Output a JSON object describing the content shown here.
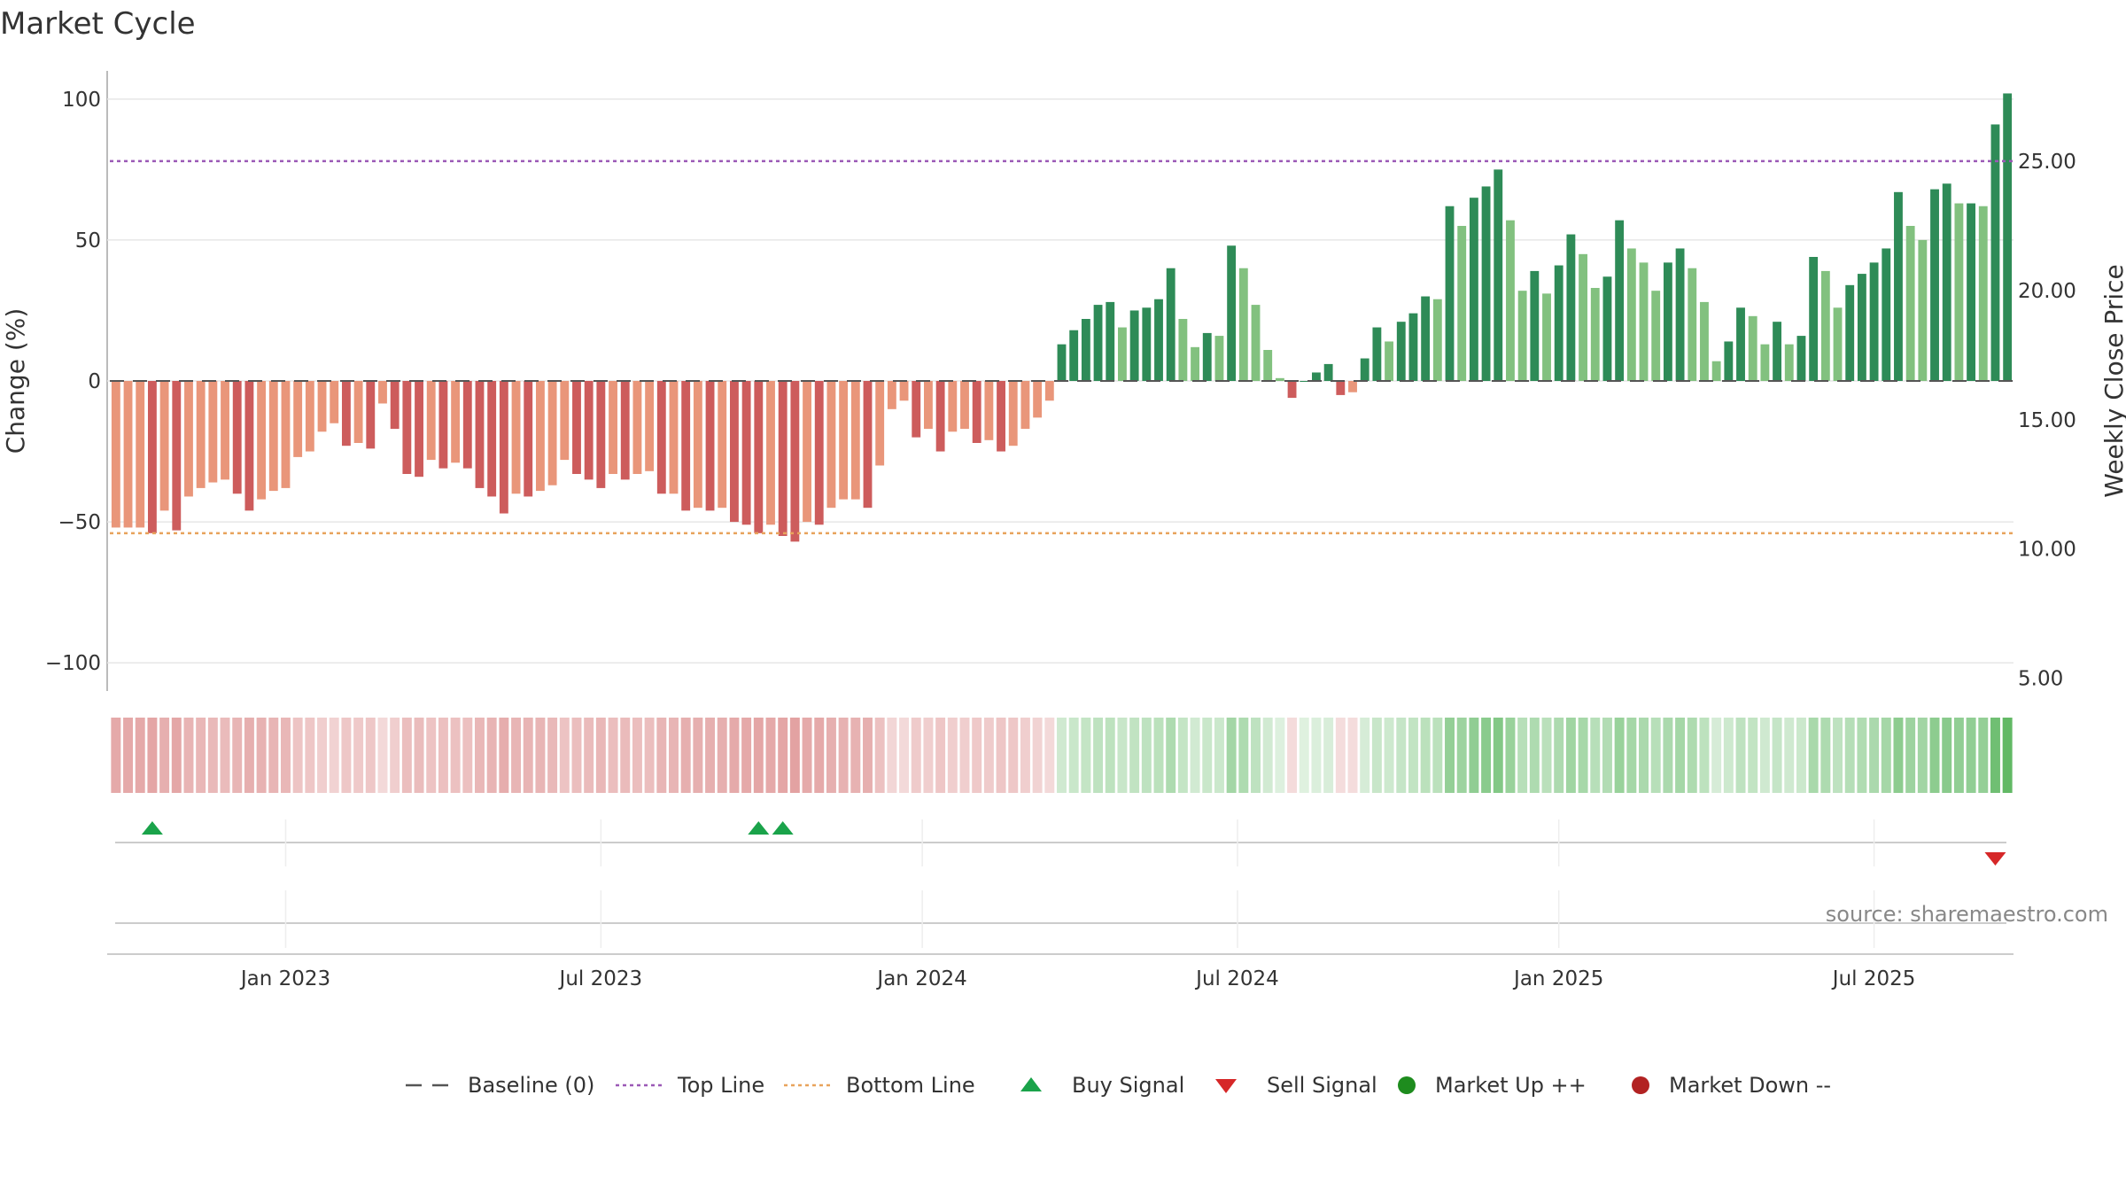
{
  "chart_data": {
    "type": "bar",
    "title": "Market Cycle",
    "ylabel": "Change (%)",
    "y2label": "Weekly Close Price",
    "ylim": [
      -110,
      110
    ],
    "y2lim": [
      4.5,
      28.5
    ],
    "yticks": [
      100,
      50,
      0,
      -50,
      -100
    ],
    "ytick_labels": [
      "100",
      "50",
      "0",
      "−50",
      "−100"
    ],
    "y2ticks": [
      25,
      20,
      15,
      10,
      5
    ],
    "y2tick_labels": [
      "25.00",
      "20.00",
      "15.00",
      "10.00",
      "5.00"
    ],
    "top_line": 78,
    "bottom_line": -54,
    "baseline": 0,
    "x_start_index_offset": 14.5,
    "xticks": [
      {
        "label": "Jan 2023",
        "index": 14.5
      },
      {
        "label": "Jul 2023",
        "index": 40.5
      },
      {
        "label": "Jan 2024",
        "index": 67.0
      },
      {
        "label": "Jul 2024",
        "index": 93.0
      },
      {
        "label": "Jan 2025",
        "index": 119.5
      },
      {
        "label": "Jul 2025",
        "index": 145.5
      }
    ],
    "values": [
      -52,
      -52,
      -52,
      -54,
      -46,
      -53,
      -41,
      -38,
      -36,
      -35,
      -40,
      -46,
      -42,
      -39,
      -38,
      -27,
      -25,
      -18,
      -15,
      -23,
      -22,
      -24,
      -8,
      -17,
      -33,
      -34,
      -28,
      -31,
      -29,
      -31,
      -38,
      -41,
      -47,
      -40,
      -41,
      -39,
      -37,
      -28,
      -33,
      -35,
      -38,
      -33,
      -35,
      -33,
      -32,
      -40,
      -40,
      -46,
      -45,
      -46,
      -45,
      -50,
      -51,
      -54,
      -51,
      -55,
      -57,
      -50,
      -51,
      -45,
      -42,
      -42,
      -45,
      -30,
      -10,
      -7,
      -20,
      -17,
      -25,
      -18,
      -17,
      -22,
      -21,
      -25,
      -23,
      -17,
      -13,
      -7,
      13,
      18,
      22,
      27,
      28,
      19,
      25,
      26,
      29,
      40,
      22,
      12,
      17,
      16,
      48,
      40,
      27,
      11,
      1,
      -6,
      0,
      3,
      6,
      -5,
      -4,
      8,
      19,
      14,
      21,
      24,
      30,
      29,
      62,
      55,
      65,
      69,
      75,
      57,
      32,
      39,
      31,
      41,
      52,
      45,
      33,
      37,
      57,
      47,
      42,
      32,
      42,
      47,
      40,
      28,
      7,
      14,
      26,
      23,
      13,
      21,
      13,
      16,
      44,
      39,
      26,
      34,
      38,
      42,
      47,
      67,
      55,
      50,
      68,
      70,
      63,
      63,
      62,
      91,
      102
    ],
    "signals": [
      {
        "type": "buy",
        "index": 3
      },
      {
        "type": "buy",
        "index": 53
      },
      {
        "type": "buy",
        "index": 55
      },
      {
        "type": "sell",
        "index": 155
      }
    ],
    "legend": [
      {
        "label": "Baseline (0)",
        "kind": "baseline"
      },
      {
        "label": "Top Line",
        "kind": "topline"
      },
      {
        "label": "Bottom Line",
        "kind": "bottomline"
      },
      {
        "label": "Buy Signal",
        "kind": "buy"
      },
      {
        "label": "Sell Signal",
        "kind": "sell"
      },
      {
        "label": "Market Up ++",
        "kind": "up"
      },
      {
        "label": "Market Down --",
        "kind": "down"
      }
    ],
    "colors": {
      "up_strong": "#2e8b57",
      "up_light": "#82c17f",
      "down_strong": "#cd5c5c",
      "down_light": "#e9967a",
      "top_line": "#9b59b6",
      "bottom_line": "#e8a35c",
      "baseline": "#555555",
      "buy": "#1aa34a",
      "sell": "#d62728",
      "market_up": "#1e8c1e",
      "market_down": "#b22222",
      "grid": "#e6e6e6",
      "axis": "#bbbbbb"
    }
  },
  "source": "source: sharemaestro.com"
}
